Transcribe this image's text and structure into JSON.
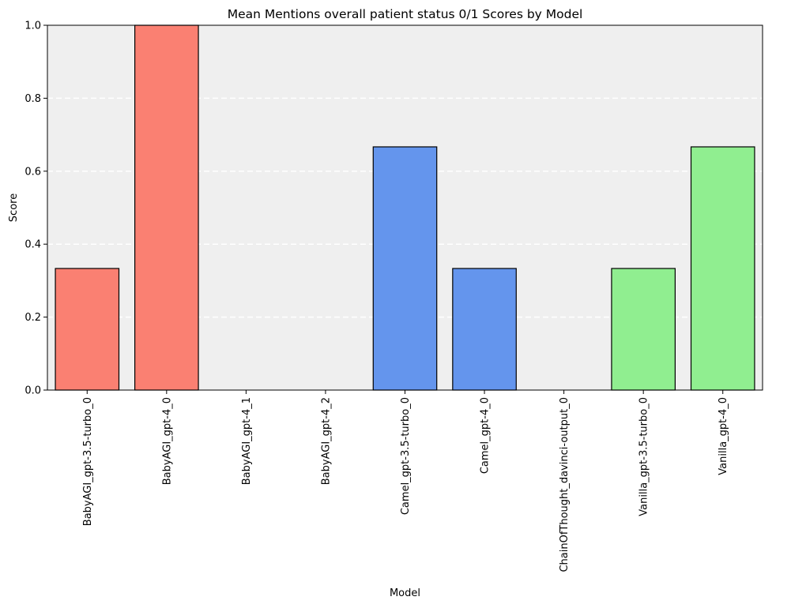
{
  "chart_data": {
    "type": "bar",
    "title": "Mean Mentions overall patient status 0/1 Scores by Model",
    "xlabel": "Model",
    "ylabel": "Score",
    "ylim": [
      0,
      1.0
    ],
    "yticks": [
      "0.0",
      "0.2",
      "0.4",
      "0.6",
      "0.8",
      "1.0"
    ],
    "grid": "y-dashed",
    "categories": [
      "BabyAGI_gpt-3.5-turbo_0",
      "BabyAGI_gpt-4_0",
      "BabyAGI_gpt-4_1",
      "BabyAGI_gpt-4_2",
      "Camel_gpt-3.5-turbo_0",
      "Camel_gpt-4_0",
      "ChainOfThought_davinci-output_0",
      "Vanilla_gpt-3.5-turbo_0",
      "Vanilla_gpt-4_0"
    ],
    "values": [
      0.3333,
      1.0,
      0.0,
      0.0,
      0.6667,
      0.3333,
      0.0,
      0.3333,
      0.6667
    ],
    "colors": [
      "#fa8072",
      "#fa8072",
      "#fa8072",
      "#fa8072",
      "#6495ed",
      "#6495ed",
      "#6495ed",
      "#90ee90",
      "#90ee90"
    ],
    "plot_background": "#efefef",
    "bar_edge_color": "#000000"
  }
}
